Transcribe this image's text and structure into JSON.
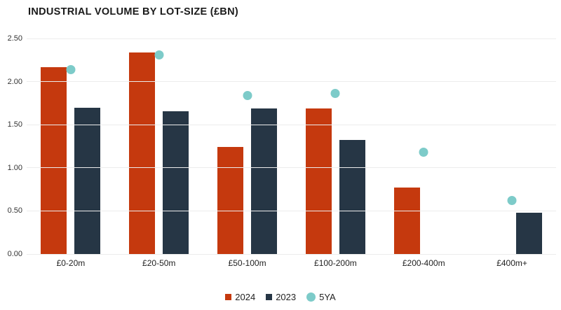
{
  "title": "INDUSTRIAL VOLUME BY LOT-SIZE (£BN)",
  "colors": {
    "bar_2024": "#C5390E",
    "bar_2023": "#263645",
    "dot_5ya": "#7DCBC9",
    "gridline": "#ECECEC",
    "title_text": "#1A1A1A",
    "axis_text": "#333333"
  },
  "chart_data": {
    "type": "bar",
    "title": "INDUSTRIAL VOLUME BY LOT-SIZE (£BN)",
    "categories": [
      "£0-20m",
      "£20-50m",
      "£50-100m",
      "£100-200m",
      "£200-400m",
      "£400m+"
    ],
    "series": [
      {
        "name": "2024",
        "type": "bar",
        "color": "#C5390E",
        "values": [
          2.17,
          2.34,
          1.24,
          1.69,
          0.77,
          null
        ]
      },
      {
        "name": "2023",
        "type": "bar",
        "color": "#263645",
        "values": [
          1.7,
          1.66,
          1.69,
          1.32,
          null,
          0.48
        ]
      },
      {
        "name": "5YA",
        "type": "scatter",
        "color": "#7DCBC9",
        "values": [
          2.14,
          2.31,
          1.84,
          1.86,
          1.18,
          0.62
        ]
      }
    ],
    "xlabel": "",
    "ylabel": "",
    "ylim": [
      0,
      2.5
    ],
    "yticks": [
      0,
      0.5,
      1.0,
      1.5,
      2.0,
      2.5
    ],
    "ytick_labels": [
      "0.00",
      "0.50",
      "1.00",
      "1.50",
      "2.00",
      "2.50"
    ],
    "grid": "horizontal",
    "legend_position": "bottom-center"
  },
  "legend": {
    "items": [
      {
        "label": "2024",
        "marker": "square",
        "color": "#C5390E"
      },
      {
        "label": "2023",
        "marker": "square",
        "color": "#263645"
      },
      {
        "label": "5YA",
        "marker": "circle",
        "color": "#7DCBC9"
      }
    ]
  }
}
